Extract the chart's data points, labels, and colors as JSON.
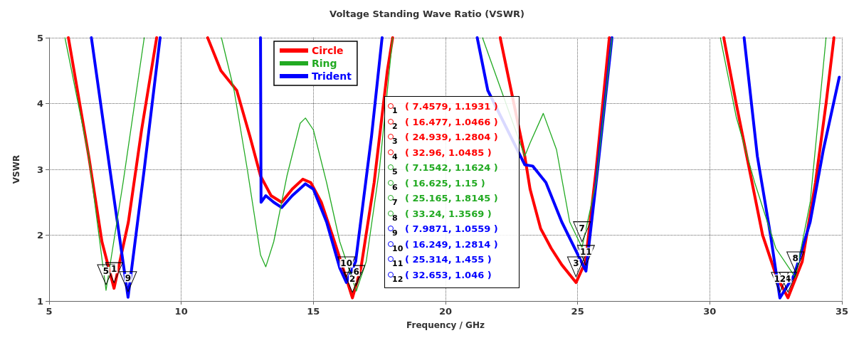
{
  "chart_data": {
    "type": "line",
    "title": "Voltage Standing Wave Ratio (VSWR)",
    "xlabel": "Frequency / GHz",
    "ylabel": "VSWR",
    "xlim": [
      5,
      35
    ],
    "xticks": [
      5,
      10,
      15,
      20,
      25,
      30,
      35
    ],
    "ylim": [
      1,
      5
    ],
    "yticks": [
      1,
      2,
      3,
      4,
      5
    ],
    "grid": true,
    "legend": "top left",
    "marker": "none",
    "line_style": "solid",
    "series": [
      {
        "name": "Circle",
        "color": "#ff0000",
        "x": [
          5.73,
          6.5,
          7.0,
          7.4579,
          8.0,
          8.5,
          9.07,
          10,
          11.0,
          11.5,
          12.1,
          12.6,
          13.0,
          13.4,
          13.8,
          14.2,
          14.6,
          14.9,
          15.3,
          15.8,
          16.2,
          16.477,
          16.8,
          17.3,
          17.8,
          18.0,
          20,
          22.07,
          23.0,
          23.2,
          23.6,
          24.0,
          24.4,
          24.939,
          25.3,
          25.7,
          26.2,
          28,
          30.53,
          31.0,
          31.5,
          32.0,
          32.5,
          32.96,
          33.5,
          34.0,
          34.4,
          34.7
        ],
        "values": [
          5,
          3.2,
          1.9,
          1.1931,
          2.2,
          3.6,
          5,
          null,
          5,
          4.5,
          4.2,
          3.5,
          2.9,
          2.6,
          2.5,
          2.7,
          2.85,
          2.8,
          2.5,
          1.9,
          1.4,
          1.0466,
          1.5,
          2.8,
          4.5,
          5,
          null,
          5,
          3.2,
          2.7,
          2.1,
          1.8,
          1.55,
          1.2804,
          1.6,
          3.0,
          5,
          null,
          5,
          4.0,
          3.0,
          2.0,
          1.4,
          1.0485,
          1.6,
          2.8,
          4.0,
          5
        ]
      },
      {
        "name": "Ring",
        "color": "#22aa22",
        "x": [
          5.6,
          6.5,
          7.1542,
          7.8,
          8.6,
          10,
          11.52,
          12.0,
          12.5,
          13.0,
          13.2,
          13.5,
          14.0,
          14.5,
          14.7,
          15.0,
          15.5,
          16.0,
          16.625,
          17.0,
          17.5,
          18.0,
          20,
          21.4,
          23.0,
          23.2,
          23.7,
          24.2,
          24.7,
          25.165,
          25.7,
          26.3,
          28,
          30.4,
          31.0,
          31.7,
          32.5,
          33.24,
          33.8,
          34.4
        ],
        "values": [
          5,
          3.2,
          1.1624,
          2.8,
          5,
          null,
          5,
          4.2,
          3.0,
          1.7,
          1.52,
          1.9,
          2.9,
          3.7,
          3.78,
          3.6,
          2.8,
          1.9,
          1.15,
          1.6,
          3.0,
          5,
          null,
          5,
          3.2,
          3.4,
          3.85,
          3.3,
          2.2,
          1.8145,
          2.8,
          5,
          null,
          5,
          3.8,
          2.8,
          1.8,
          1.3569,
          2.5,
          5
        ]
      },
      {
        "name": "Trident",
        "color": "#0000ff",
        "x": [
          6.6,
          7.3,
          7.9871,
          8.6,
          9.2,
          11,
          13.0,
          13.02,
          13.2,
          13.5,
          13.8,
          14.2,
          14.7,
          15.0,
          15.5,
          16.0,
          16.249,
          16.6,
          17.2,
          17.6,
          20,
          21.2,
          21.6,
          23.0,
          23.3,
          23.8,
          24.4,
          25.314,
          25.7,
          26.3,
          28,
          31.3,
          31.8,
          32.3,
          32.653,
          33.2,
          33.8,
          34.3,
          34.9
        ],
        "values": [
          5,
          3.0,
          1.0559,
          3.0,
          5,
          null,
          5,
          2.5,
          2.6,
          2.5,
          2.42,
          2.6,
          2.78,
          2.7,
          2.2,
          1.5,
          1.2814,
          1.6,
          3.5,
          5,
          null,
          5,
          4.2,
          3.07,
          3.05,
          2.8,
          2.2,
          1.455,
          2.8,
          5,
          null,
          5,
          3.2,
          2.0,
          1.046,
          1.4,
          2.2,
          3.3,
          4.4
        ]
      }
    ],
    "annotations": [
      {
        "text": "1",
        "x": 7.4579,
        "y": 1.1931
      },
      {
        "text": "2",
        "x": 16.477,
        "y": 1.0466
      },
      {
        "text": "3",
        "x": 24.939,
        "y": 1.2804
      },
      {
        "text": "4",
        "x": 32.96,
        "y": 1.0485
      },
      {
        "text": "5",
        "x": 7.1542,
        "y": 1.1624
      },
      {
        "text": "6",
        "x": 16.625,
        "y": 1.15
      },
      {
        "text": "7",
        "x": 25.165,
        "y": 1.8145
      },
      {
        "text": "8",
        "x": 33.24,
        "y": 1.3569
      },
      {
        "text": "9",
        "x": 7.9871,
        "y": 1.0559
      },
      {
        "text": "10",
        "x": 16.249,
        "y": 1.2814
      },
      {
        "text": "11",
        "x": 25.314,
        "y": 1.455
      },
      {
        "text": "12",
        "x": 32.653,
        "y": 1.046
      },
      "( 7.4579, 1.1931 )",
      "( 16.477, 1.0466 )",
      "( 24.939, 1.2804 )",
      "( 32.96, 1.0485 )",
      "( 7.1542, 1.1624 )",
      "( 16.625, 1.15 )",
      "( 25.165, 1.8145 )",
      "( 33.24, 1.3569 )",
      "( 7.9871, 1.0559 )",
      "( 16.249, 1.2814 )",
      "( 25.314, 1.455 )",
      "( 32.653, 1.046 )"
    ]
  }
}
